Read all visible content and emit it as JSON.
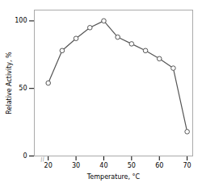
{
  "chart_data": {
    "type": "line",
    "x": [
      20,
      25,
      30,
      35,
      40,
      45,
      50,
      55,
      60,
      65,
      70
    ],
    "values": [
      54,
      78,
      87,
      95,
      100,
      88,
      83,
      78,
      72,
      65,
      18
    ],
    "color": "#555555",
    "marker": "circle",
    "xlabel": "Temperature, °C",
    "ylabel": "Relative Activity, %",
    "xlim": [
      15,
      72
    ],
    "ylim": [
      0,
      108
    ],
    "xticks": [
      20,
      30,
      40,
      50,
      60,
      70
    ],
    "yticks": [
      0,
      50,
      100
    ],
    "grid": false,
    "annotations": [
      {
        "text": "//",
        "color": "#888888"
      }
    ]
  }
}
